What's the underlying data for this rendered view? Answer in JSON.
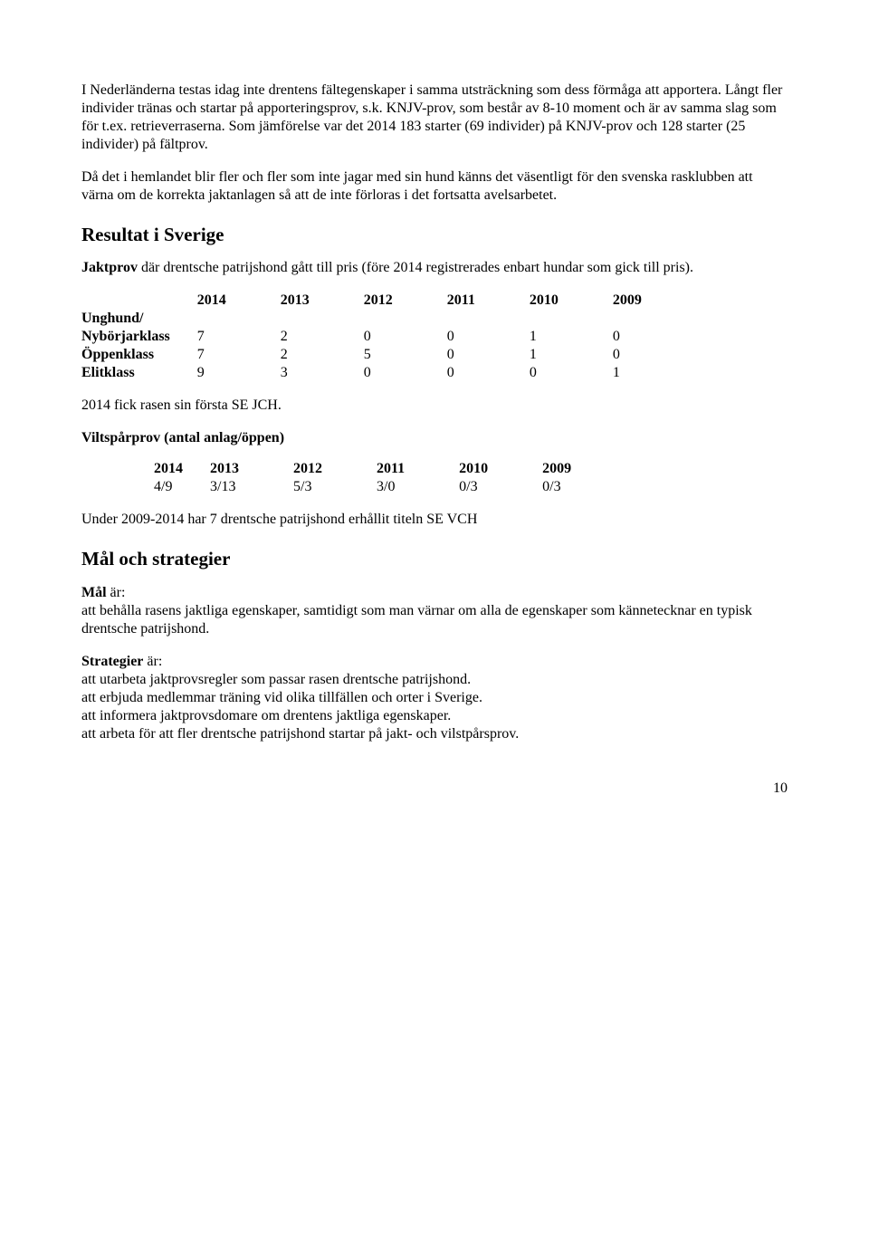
{
  "para1": "I Nederländerna testas idag inte drentens fältegenskaper i samma utsträckning som dess förmåga att apportera. Långt fler individer tränas och startar på apporteringsprov, s.k. KNJV-prov, som består av 8-10 moment och är av samma slag som för t.ex. retrieverraserna. Som jämförelse var det 2014 183 starter (69 individer) på KNJV-prov och 128 starter (25 individer) på fältprov.",
  "para2": "Då det i hemlandet blir fler och fler som inte jagar med sin hund känns det väsentligt för den svenska rasklubben att värna om de korrekta jaktanlagen så att de inte förloras i det fortsatta avelsarbetet.",
  "h_resultat": "Resultat i Sverige",
  "jaktprov_lead_bold": "Jaktprov",
  "jaktprov_lead_rest": " där drentsche patrijshond gått till pris (före 2014 registrerades enbart hundar som gick till pris).",
  "years": [
    "2014",
    "2013",
    "2012",
    "2011",
    "2010",
    "2009"
  ],
  "t1": {
    "r0_label": "Unghund/",
    "r1": [
      "Nybörjarklass",
      "7",
      "2",
      "0",
      "0",
      "1",
      "0"
    ],
    "r2": [
      "Öppenklass",
      "7",
      "2",
      "5",
      "0",
      "1",
      "0"
    ],
    "r3": [
      "Elitklass",
      "9",
      "3",
      "0",
      "0",
      "0",
      "1"
    ]
  },
  "sejch": "2014 fick rasen sin första SE JCH.",
  "viltspar_h": "Viltspårprov (antal anlag/öppen)",
  "t2": {
    "row": [
      "4/9",
      "3/13",
      "5/3",
      "3/0",
      "0/3",
      "0/3"
    ]
  },
  "under": "Under 2009-2014 har 7 drentsche patrijshond erhållit titeln SE VCH",
  "h_mal": "Mål och strategier",
  "mal_label": "Mål",
  "mal_rest": " är:",
  "mal_text": "att behålla rasens jaktliga egenskaper, samtidigt som man värnar om alla de egenskaper som kännetecknar en typisk drentsche patrijshond.",
  "strat_label": "Strategier",
  "strat_rest": " är:",
  "strat1": "att utarbeta jaktprovsregler som passar rasen drentsche patrijshond.",
  "strat2": "att erbjuda medlemmar träning vid olika tillfällen och orter i Sverige.",
  "strat3": "att informera jaktprovsdomare om drentens jaktliga egenskaper.",
  "strat4": "att arbeta för att fler drentsche patrijshond startar på jakt- och vilstpårsprov.",
  "page": "10"
}
